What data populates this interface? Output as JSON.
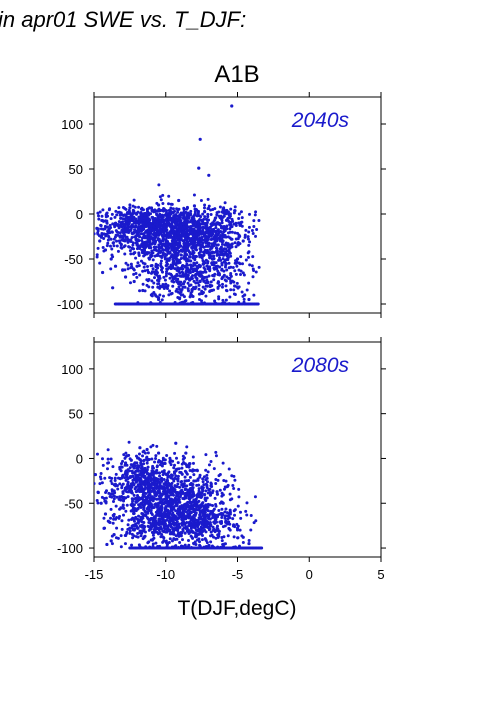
{
  "header_text": "in apr01 SWE vs. T_DJF:",
  "scenario_title": "A1B",
  "xlabel": "T(DJF,degC)",
  "colors": {
    "points": "#1a1acc",
    "axis": "#000000",
    "period_label": "#1a1acc"
  },
  "chart_data": [
    {
      "type": "scatter",
      "period_label": "2040s",
      "xlim": [
        -15,
        5
      ],
      "ylim": [
        -110,
        130
      ],
      "xticks": [
        "-15",
        "-10",
        "-5",
        "0",
        "5"
      ],
      "yticks": [
        "100",
        "50",
        "0",
        "-50",
        "-100"
      ],
      "x_tick_labels_shown": false,
      "grid": false,
      "series": [
        {
          "points": [
            [
              -5.4,
              120
            ],
            [
              -7.6,
              83
            ],
            [
              -7.7,
              51
            ],
            [
              -7.0,
              43
            ],
            [
              -9.1,
              15
            ],
            [
              -10.5,
              10
            ],
            [
              -8.0,
              9
            ],
            [
              -6.0,
              5
            ],
            [
              -12.5,
              7
            ],
            [
              -14.8,
              -16
            ],
            [
              -15.0,
              -22
            ],
            [
              -14.6,
              -30
            ],
            [
              -14.2,
              -40
            ],
            [
              -13.8,
              -50
            ],
            [
              -13.5,
              -58
            ],
            [
              -13.0,
              -62
            ],
            [
              -14.4,
              -65
            ],
            [
              -12.8,
              -70
            ],
            [
              -12.2,
              -75
            ],
            [
              -11.6,
              -85
            ],
            [
              -11.0,
              -90
            ],
            [
              -10.5,
              -95
            ],
            [
              -13.7,
              -82
            ],
            [
              -12.0,
              -58
            ],
            [
              -6.5,
              -60
            ],
            [
              -6.0,
              -70
            ],
            [
              -5.2,
              -80
            ],
            [
              -4.5,
              -90
            ],
            [
              -4.2,
              -95
            ],
            [
              -5.0,
              -50
            ],
            [
              -4.6,
              -30
            ],
            [
              -4.8,
              -10
            ],
            [
              -5.5,
              0
            ],
            [
              -6.8,
              -85
            ],
            [
              -9.0,
              -88
            ],
            [
              -8.3,
              -92
            ],
            [
              -7.6,
              -75
            ],
            [
              -10.0,
              -78
            ],
            [
              -11.2,
              -65
            ]
          ],
          "floor_line": {
            "y": -100,
            "x_from": -13.5,
            "x_to": -3.5
          },
          "clusters": [
            {
              "cx": -9.5,
              "cy": -18,
              "sx": 2.2,
              "sy": 14,
              "n": 1100
            },
            {
              "cx": -8.8,
              "cy": -45,
              "sx": 2.0,
              "sy": 22,
              "n": 550
            },
            {
              "cx": -8.0,
              "cy": -75,
              "sx": 1.9,
              "sy": 15,
              "n": 260
            },
            {
              "cx": -12.0,
              "cy": -15,
              "sx": 1.4,
              "sy": 15,
              "n": 220
            },
            {
              "cx": -6.2,
              "cy": -30,
              "sx": 1.0,
              "sy": 25,
              "n": 160
            }
          ]
        }
      ]
    },
    {
      "type": "scatter",
      "period_label": "2080s",
      "xlim": [
        -15,
        5
      ],
      "ylim": [
        -110,
        130
      ],
      "xticks": [
        "-15",
        "-10",
        "-5",
        "0",
        "5"
      ],
      "yticks": [
        "100",
        "50",
        "0",
        "-50",
        "-100"
      ],
      "x_tick_labels_shown": true,
      "grid": false,
      "series": [
        {
          "points": [
            [
              -9.3,
              17
            ],
            [
              -11.8,
              12
            ],
            [
              -11.3,
              10
            ],
            [
              -10.5,
              6
            ],
            [
              -8.6,
              6
            ],
            [
              -14.9,
              -18
            ],
            [
              -15.0,
              -28
            ],
            [
              -14.7,
              -38
            ],
            [
              -14.5,
              -50
            ],
            [
              -14.2,
              -62
            ],
            [
              -14.0,
              -70
            ],
            [
              -14.3,
              -78
            ],
            [
              -13.6,
              -85
            ],
            [
              -13.8,
              -92
            ],
            [
              -14.1,
              -96
            ],
            [
              -5.0,
              -78
            ],
            [
              -4.6,
              -88
            ],
            [
              -4.2,
              -95
            ],
            [
              -5.5,
              -60
            ],
            [
              -6.0,
              -50
            ],
            [
              -6.4,
              -40
            ],
            [
              -7.0,
              -35
            ],
            [
              -12.8,
              -5
            ],
            [
              -13.2,
              -10
            ],
            [
              -12.4,
              -2
            ]
          ],
          "floor_line": {
            "y": -100,
            "x_from": -12.5,
            "x_to": -3.3
          },
          "clusters": [
            {
              "cx": -10.2,
              "cy": -45,
              "sx": 1.9,
              "sy": 22,
              "n": 900
            },
            {
              "cx": -9.0,
              "cy": -72,
              "sx": 2.0,
              "sy": 15,
              "n": 450
            },
            {
              "cx": -11.5,
              "cy": -22,
              "sx": 1.2,
              "sy": 14,
              "n": 280
            },
            {
              "cx": -7.2,
              "cy": -60,
              "sx": 1.3,
              "sy": 20,
              "n": 220
            }
          ]
        }
      ]
    }
  ]
}
